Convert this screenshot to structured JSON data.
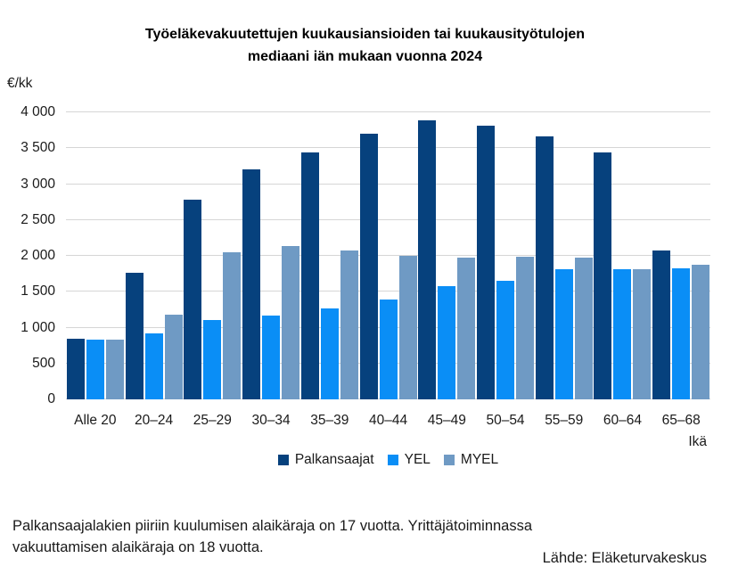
{
  "title": {
    "line1": "Työeläkevakuutettujen kuukausiansioiden tai kuukausityötulojen",
    "line2": "mediaani iän mukaan vuonna 2024"
  },
  "y_unit": "€/kk",
  "x_axis_title": "Ikä",
  "footer": {
    "note_line1": "Palkansaajalakien piiriin kuulumisen alaikäraja on 17 vuotta. Yrittäjätoiminnassa",
    "note_line2": "vakuuttamisen alaikäraja on 18 vuotta.",
    "source": "Lähde: Eläketurvakeskus"
  },
  "colors": {
    "palkansaajat": "#06417d",
    "yel": "#0a8ef6",
    "myel": "#6f9ac4",
    "gridline": "#d6d6d6"
  },
  "chart_data": {
    "type": "bar",
    "title": "Työeläkevakuutettujen kuukausiansioiden tai kuukausityötulojen mediaani iän mukaan vuonna 2024",
    "xlabel": "Ikä",
    "ylabel": "€/kk",
    "categories": [
      "Alle 20",
      "20–24",
      "25–29",
      "30–34",
      "35–39",
      "40–44",
      "45–49",
      "50–54",
      "55–59",
      "60–64",
      "65–68"
    ],
    "series": [
      {
        "name": "Palkansaajat",
        "color": "#06417d",
        "values": [
          850,
          1760,
          2780,
          3200,
          3440,
          3700,
          3890,
          3810,
          3660,
          3440,
          2080
        ]
      },
      {
        "name": "YEL",
        "color": "#0a8ef6",
        "values": [
          830,
          920,
          1100,
          1170,
          1270,
          1390,
          1580,
          1650,
          1810,
          1810,
          1830
        ]
      },
      {
        "name": "MYEL",
        "color": "#6f9ac4",
        "values": [
          830,
          1180,
          2050,
          2140,
          2070,
          2000,
          1980,
          1990,
          1980,
          1810,
          1880
        ]
      }
    ],
    "ylim": [
      0,
      4000
    ],
    "yticks": [
      0,
      500,
      1000,
      1500,
      2000,
      2500,
      3000,
      3500,
      4000
    ],
    "ytick_labels": [
      "0",
      "500",
      "1 000",
      "1 500",
      "2 000",
      "2 500",
      "3 000",
      "3 500",
      "4 000"
    ],
    "grid": true,
    "legend_position": "bottom"
  }
}
